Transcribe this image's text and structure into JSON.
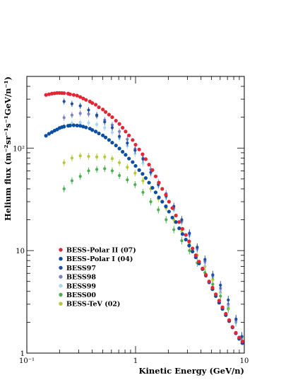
{
  "chart_data": {
    "type": "scatter",
    "title": "",
    "xlabel": "Kinetic Energy (GeV/n)",
    "ylabel": "Helium flux (m⁻²sr⁻¹s⁻¹GeV/n⁻¹)",
    "xscale": "log",
    "yscale": "log",
    "xlim": [
      0.1,
      10
    ],
    "ylim": [
      1,
      500
    ],
    "x_tick_labels": [
      {
        "value": 0.1,
        "label": "10⁻¹"
      },
      {
        "value": 1,
        "label": "1"
      },
      {
        "value": 10,
        "label": "10"
      }
    ],
    "y_tick_labels": [
      {
        "value": 1,
        "label": "1"
      },
      {
        "value": 10,
        "label": "10"
      },
      {
        "value": 100,
        "label": "10²"
      }
    ],
    "grid": false,
    "legend_position": "bottom-left",
    "series": [
      {
        "name": "BESS-Polar II (07)",
        "color": "#e32636",
        "error_bars": false,
        "points": [
          [
            0.15,
            330
          ],
          [
            0.16,
            335
          ],
          [
            0.17,
            340
          ],
          [
            0.18,
            342
          ],
          [
            0.19,
            345
          ],
          [
            0.2,
            345
          ],
          [
            0.21,
            344
          ],
          [
            0.22,
            343
          ],
          [
            0.24,
            340
          ],
          [
            0.25,
            335
          ],
          [
            0.27,
            330
          ],
          [
            0.29,
            325
          ],
          [
            0.31,
            315
          ],
          [
            0.33,
            305
          ],
          [
            0.35,
            295
          ],
          [
            0.38,
            285
          ],
          [
            0.4,
            275
          ],
          [
            0.43,
            265
          ],
          [
            0.46,
            250
          ],
          [
            0.5,
            238
          ],
          [
            0.53,
            225
          ],
          [
            0.57,
            212
          ],
          [
            0.61,
            200
          ],
          [
            0.66,
            185
          ],
          [
            0.71,
            172
          ],
          [
            0.76,
            158
          ],
          [
            0.81,
            145
          ],
          [
            0.87,
            133
          ],
          [
            0.94,
            120
          ],
          [
            1.0,
            108
          ],
          [
            1.08,
            97
          ],
          [
            1.16,
            87
          ],
          [
            1.24,
            78
          ],
          [
            1.33,
            69
          ],
          [
            1.43,
            61
          ],
          [
            1.53,
            53
          ],
          [
            1.64,
            46
          ],
          [
            1.76,
            40
          ],
          [
            1.9,
            35
          ],
          [
            2.03,
            30
          ],
          [
            2.18,
            26
          ],
          [
            2.35,
            22
          ],
          [
            2.52,
            19
          ],
          [
            2.7,
            16.3
          ],
          [
            2.9,
            14.2
          ],
          [
            3.11,
            12.3
          ],
          [
            3.34,
            10.5
          ],
          [
            3.58,
            9.0
          ],
          [
            3.84,
            7.8
          ],
          [
            4.13,
            6.7
          ],
          [
            4.43,
            5.8
          ],
          [
            4.75,
            5.0
          ],
          [
            5.1,
            4.35
          ],
          [
            5.47,
            3.75
          ],
          [
            5.87,
            3.25
          ],
          [
            6.3,
            2.8
          ],
          [
            6.76,
            2.42
          ],
          [
            7.26,
            2.1
          ],
          [
            7.79,
            1.8
          ],
          [
            8.36,
            1.58
          ],
          [
            8.97,
            1.42
          ],
          [
            9.6,
            1.3
          ]
        ]
      },
      {
        "name": "BESS-Polar I (04)",
        "color": "#0b4ea2",
        "error_bars": false,
        "points": [
          [
            0.15,
            132
          ],
          [
            0.16,
            138
          ],
          [
            0.17,
            143
          ],
          [
            0.18,
            148
          ],
          [
            0.19,
            152
          ],
          [
            0.2,
            157
          ],
          [
            0.21,
            160
          ],
          [
            0.22,
            162
          ],
          [
            0.24,
            165
          ],
          [
            0.25,
            166
          ],
          [
            0.27,
            167
          ],
          [
            0.29,
            166
          ],
          [
            0.31,
            165
          ],
          [
            0.33,
            162
          ],
          [
            0.35,
            159
          ],
          [
            0.38,
            155
          ],
          [
            0.4,
            150
          ],
          [
            0.43,
            145
          ],
          [
            0.46,
            139
          ],
          [
            0.5,
            133
          ],
          [
            0.53,
            127
          ],
          [
            0.57,
            120
          ],
          [
            0.61,
            113
          ],
          [
            0.66,
            106
          ],
          [
            0.71,
            99
          ],
          [
            0.76,
            92
          ],
          [
            0.81,
            86
          ],
          [
            0.87,
            79
          ],
          [
            0.94,
            73
          ],
          [
            1.0,
            67
          ],
          [
            1.08,
            61
          ],
          [
            1.16,
            56
          ],
          [
            1.24,
            51
          ],
          [
            1.33,
            46
          ],
          [
            1.43,
            41
          ],
          [
            1.53,
            37
          ],
          [
            1.64,
            33
          ],
          [
            1.76,
            30
          ],
          [
            1.9,
            27
          ],
          [
            2.03,
            24
          ],
          [
            2.18,
            21
          ],
          [
            2.35,
            19
          ],
          [
            2.52,
            16.5
          ],
          [
            2.7,
            14.5
          ],
          [
            2.9,
            12.8
          ],
          [
            3.11,
            11.2
          ],
          [
            3.34,
            9.8
          ],
          [
            3.58,
            8.6
          ],
          [
            3.84,
            7.5
          ],
          [
            4.13,
            6.6
          ],
          [
            4.43,
            5.7
          ],
          [
            4.75,
            4.9
          ],
          [
            5.1,
            4.2
          ],
          [
            5.47,
            3.6
          ],
          [
            5.87,
            3.1
          ],
          [
            6.3,
            2.7
          ],
          [
            6.76,
            2.35
          ],
          [
            7.26,
            2.05
          ],
          [
            7.79,
            1.78
          ],
          [
            8.36,
            1.56
          ],
          [
            8.97,
            1.38
          ],
          [
            9.6,
            1.25
          ]
        ]
      },
      {
        "name": "BESS97",
        "color": "#1f4fa3",
        "error_bars": true,
        "points": [
          [
            0.22,
            285
          ],
          [
            0.26,
            270
          ],
          [
            0.31,
            258
          ],
          [
            0.37,
            235
          ],
          [
            0.44,
            210
          ],
          [
            0.52,
            180
          ],
          [
            0.61,
            158
          ],
          [
            0.71,
            130
          ],
          [
            0.84,
            112
          ],
          [
            0.99,
            95
          ],
          [
            1.17,
            78
          ],
          [
            1.38,
            58
          ],
          [
            1.62,
            44
          ],
          [
            1.91,
            34
          ],
          [
            2.25,
            27
          ],
          [
            2.66,
            20
          ],
          [
            3.13,
            14.8
          ],
          [
            3.69,
            10.8
          ],
          [
            4.35,
            8.2
          ],
          [
            5.13,
            5.8
          ],
          [
            6.04,
            4.6
          ],
          [
            7.12,
            3.3
          ],
          [
            8.39,
            2.15
          ],
          [
            9.5,
            1.45
          ]
        ]
      },
      {
        "name": "BESS98",
        "color": "#7b84c4",
        "error_bars": true,
        "points": [
          [
            0.22,
            198
          ],
          [
            0.26,
            210
          ],
          [
            0.31,
            218
          ],
          [
            0.37,
            215
          ],
          [
            0.44,
            205
          ],
          [
            0.52,
            188
          ],
          [
            0.61,
            168
          ],
          [
            0.71,
            145
          ],
          [
            0.84,
            122
          ],
          [
            0.99,
            98
          ],
          [
            1.17,
            80
          ],
          [
            1.38,
            62
          ],
          [
            1.62,
            46
          ],
          [
            1.91,
            36
          ],
          [
            2.25,
            26
          ],
          [
            2.66,
            19.5
          ],
          [
            3.13,
            14.5
          ],
          [
            3.69,
            10.5
          ],
          [
            4.35,
            7.9
          ],
          [
            5.13,
            5.7
          ],
          [
            6.04,
            4.3
          ],
          [
            7.12,
            3.0
          ],
          [
            8.39,
            2.1
          ],
          [
            9.5,
            1.45
          ]
        ]
      },
      {
        "name": "BESS99",
        "color": "#a9d6f0",
        "error_bars": true,
        "points": [
          [
            0.22,
            165
          ],
          [
            0.26,
            175
          ],
          [
            0.31,
            178
          ],
          [
            0.37,
            176
          ],
          [
            0.44,
            170
          ],
          [
            0.52,
            158
          ],
          [
            0.61,
            142
          ],
          [
            0.71,
            125
          ],
          [
            0.84,
            105
          ],
          [
            0.99,
            88
          ],
          [
            1.17,
            71
          ],
          [
            1.38,
            56
          ],
          [
            1.62,
            43
          ],
          [
            1.91,
            33
          ],
          [
            2.25,
            25
          ],
          [
            2.66,
            18.8
          ],
          [
            3.13,
            14
          ],
          [
            3.69,
            10.2
          ],
          [
            4.35,
            7.6
          ],
          [
            5.13,
            5.5
          ],
          [
            6.04,
            4.1
          ],
          [
            7.12,
            2.9
          ],
          [
            8.39,
            2.0
          ],
          [
            9.5,
            1.45
          ]
        ]
      },
      {
        "name": "BESS00",
        "color": "#4caf50",
        "error_bars": true,
        "points": [
          [
            0.22,
            40
          ],
          [
            0.26,
            48
          ],
          [
            0.31,
            53
          ],
          [
            0.37,
            60
          ],
          [
            0.44,
            62
          ],
          [
            0.52,
            63
          ],
          [
            0.61,
            60
          ],
          [
            0.71,
            54
          ],
          [
            0.84,
            49
          ],
          [
            0.99,
            44
          ],
          [
            1.17,
            37
          ],
          [
            1.38,
            30
          ],
          [
            1.62,
            25
          ],
          [
            1.91,
            20
          ],
          [
            2.25,
            16
          ],
          [
            2.66,
            12.5
          ],
          [
            3.13,
            10
          ],
          [
            3.69,
            7.6
          ],
          [
            4.35,
            6.1
          ],
          [
            5.13,
            4.7
          ],
          [
            6.04,
            3.6
          ],
          [
            7.12,
            2.7
          ],
          [
            8.39,
            2.0
          ],
          [
            9.5,
            1.45
          ]
        ]
      },
      {
        "name": "BESS-TeV (02)",
        "color": "#b5c935",
        "error_bars": true,
        "points": [
          [
            0.22,
            72
          ],
          [
            0.26,
            80
          ],
          [
            0.31,
            84
          ],
          [
            0.37,
            83
          ],
          [
            0.44,
            82
          ],
          [
            0.52,
            82
          ],
          [
            0.61,
            79
          ],
          [
            0.71,
            72
          ],
          [
            0.84,
            65
          ],
          [
            0.99,
            57
          ],
          [
            1.17,
            48
          ],
          [
            1.38,
            40
          ],
          [
            1.62,
            32
          ],
          [
            1.91,
            26
          ],
          [
            2.25,
            20
          ],
          [
            2.66,
            15.5
          ],
          [
            3.13,
            11.8
          ],
          [
            3.69,
            9.0
          ],
          [
            4.35,
            7.0
          ],
          [
            5.13,
            5.2
          ],
          [
            6.04,
            3.9
          ],
          [
            7.12,
            2.8
          ],
          [
            8.39,
            2.0
          ],
          [
            9.5,
            1.4
          ]
        ]
      }
    ]
  }
}
